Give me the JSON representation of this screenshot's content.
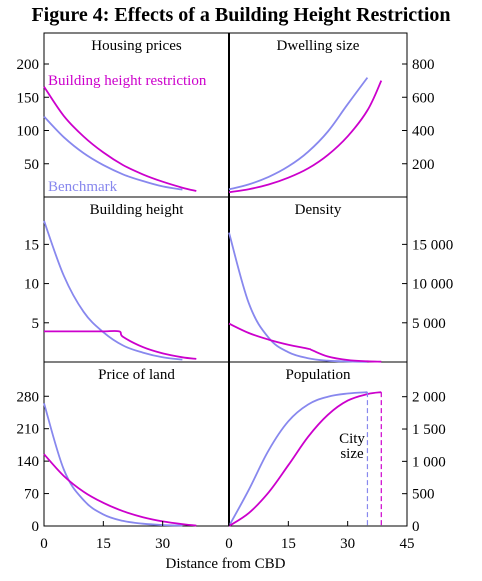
{
  "figure": {
    "title": "Figure 4: Effects of a Building Height Restriction"
  },
  "colors": {
    "benchmark": "#8888ee",
    "restriction": "#cc00cc",
    "axis": "#000000"
  },
  "chart_data": [
    {
      "type": "line",
      "panel": "top-left",
      "title": "Housing prices",
      "yaxis": "left",
      "ylim": [
        0,
        200
      ],
      "yticks": [
        50,
        100,
        150,
        200
      ],
      "xlim": [
        0,
        45
      ],
      "annotations": [
        {
          "text": "Building height restriction",
          "color": "restriction"
        },
        {
          "text": "Benchmark",
          "color": "benchmark"
        }
      ],
      "series": [
        {
          "key": "benchmark",
          "x": [
            0,
            5,
            10,
            15,
            20,
            25,
            30,
            35
          ],
          "y": [
            121,
            90,
            66,
            48,
            34,
            24,
            16,
            11
          ]
        },
        {
          "key": "restriction",
          "x": [
            0,
            5,
            10,
            15,
            20,
            25,
            30,
            35,
            38.5
          ],
          "y": [
            166,
            122,
            91,
            67,
            48,
            34,
            23,
            14,
            9
          ]
        }
      ]
    },
    {
      "type": "line",
      "panel": "top-right",
      "title": "Dwelling size",
      "yaxis": "right",
      "ylim": [
        0,
        800
      ],
      "yticks": [
        200,
        400,
        600,
        800
      ],
      "xlim": [
        0,
        45
      ],
      "series": [
        {
          "key": "benchmark",
          "x": [
            0,
            5,
            10,
            15,
            20,
            25,
            30,
            35
          ],
          "y": [
            46,
            76,
            121,
            184,
            272,
            394,
            558,
            718
          ]
        },
        {
          "key": "restriction",
          "x": [
            0,
            5,
            10,
            15,
            20,
            25,
            30,
            35,
            38.5
          ],
          "y": [
            29,
            47,
            75,
            116,
            172,
            253,
            365,
            521,
            700
          ]
        }
      ]
    },
    {
      "type": "line",
      "panel": "middle-left",
      "title": "Building height",
      "yaxis": "left",
      "ylim": [
        0,
        19
      ],
      "yticks": [
        5,
        10,
        15
      ],
      "xlim": [
        0,
        45
      ],
      "series": [
        {
          "key": "benchmark",
          "x": [
            0,
            5,
            10,
            15,
            20,
            25,
            30,
            35
          ],
          "y": [
            18,
            11,
            6.4,
            3.8,
            2.1,
            1.2,
            0.6,
            0.3
          ]
        },
        {
          "key": "restriction",
          "x": [
            0,
            5,
            10,
            15,
            19,
            20,
            25,
            30,
            35,
            38.5
          ],
          "y": [
            3.9,
            3.9,
            3.9,
            3.9,
            3.9,
            3.2,
            1.9,
            1.1,
            0.6,
            0.4
          ]
        }
      ]
    },
    {
      "type": "line",
      "panel": "middle-right",
      "title": "Density",
      "yaxis": "right",
      "ylim": [
        0,
        19000
      ],
      "yticks": [
        5000,
        10000,
        15000
      ],
      "yticklabels": [
        "5 000",
        "10 000",
        "15 000"
      ],
      "xlim": [
        0,
        45
      ],
      "series": [
        {
          "key": "benchmark",
          "x": [
            0,
            5,
            10,
            15,
            20,
            25,
            30,
            35
          ],
          "y": [
            16500,
            7500,
            3100,
            1250,
            480,
            170,
            60,
            20
          ]
        },
        {
          "key": "restriction",
          "x": [
            0,
            5,
            10,
            15,
            20,
            21,
            25,
            30,
            35,
            38.5
          ],
          "y": [
            4900,
            3700,
            2850,
            2200,
            1700,
            1500,
            700,
            250,
            90,
            40
          ]
        }
      ]
    },
    {
      "type": "line",
      "panel": "bottom-left",
      "title": "Price of land",
      "yaxis": "left",
      "ylim": [
        0,
        300
      ],
      "yticks": [
        0,
        70,
        140,
        210,
        280
      ],
      "xlim": [
        0,
        45
      ],
      "xticks": [
        0,
        15,
        30
      ],
      "series": [
        {
          "key": "benchmark",
          "x": [
            0,
            5,
            10,
            15,
            20,
            25,
            30,
            35
          ],
          "y": [
            265,
            122,
            56,
            25,
            11,
            5,
            2,
            1
          ]
        },
        {
          "key": "restriction",
          "x": [
            0,
            5,
            10,
            15,
            20,
            25,
            30,
            35,
            38.5
          ],
          "y": [
            155,
            108,
            74,
            50,
            32,
            19,
            10,
            4,
            1
          ]
        }
      ]
    },
    {
      "type": "line",
      "panel": "bottom-right",
      "title": "Population",
      "yaxis": "right",
      "ylim": [
        0,
        2150
      ],
      "yticks": [
        0,
        500,
        1000,
        1500,
        2000
      ],
      "yticklabels": [
        "0",
        "500",
        "1 000",
        "1 500",
        "2 000"
      ],
      "xlim": [
        0,
        45
      ],
      "xticks": [
        0,
        15,
        30,
        45
      ],
      "annotations": [
        {
          "text": "City\nsize"
        }
      ],
      "city_size": {
        "benchmark": 35,
        "restriction": 38.5
      },
      "series": [
        {
          "key": "benchmark",
          "x": [
            0,
            5,
            10,
            15,
            20,
            25,
            30,
            35
          ],
          "y": [
            0,
            560,
            1170,
            1620,
            1880,
            2000,
            2050,
            2070
          ]
        },
        {
          "key": "restriction",
          "x": [
            0,
            5,
            10,
            15,
            20,
            25,
            30,
            35,
            38.5
          ],
          "y": [
            0,
            200,
            520,
            940,
            1380,
            1720,
            1940,
            2040,
            2070
          ]
        }
      ]
    }
  ],
  "xaxis_label": "Distance from CBD"
}
